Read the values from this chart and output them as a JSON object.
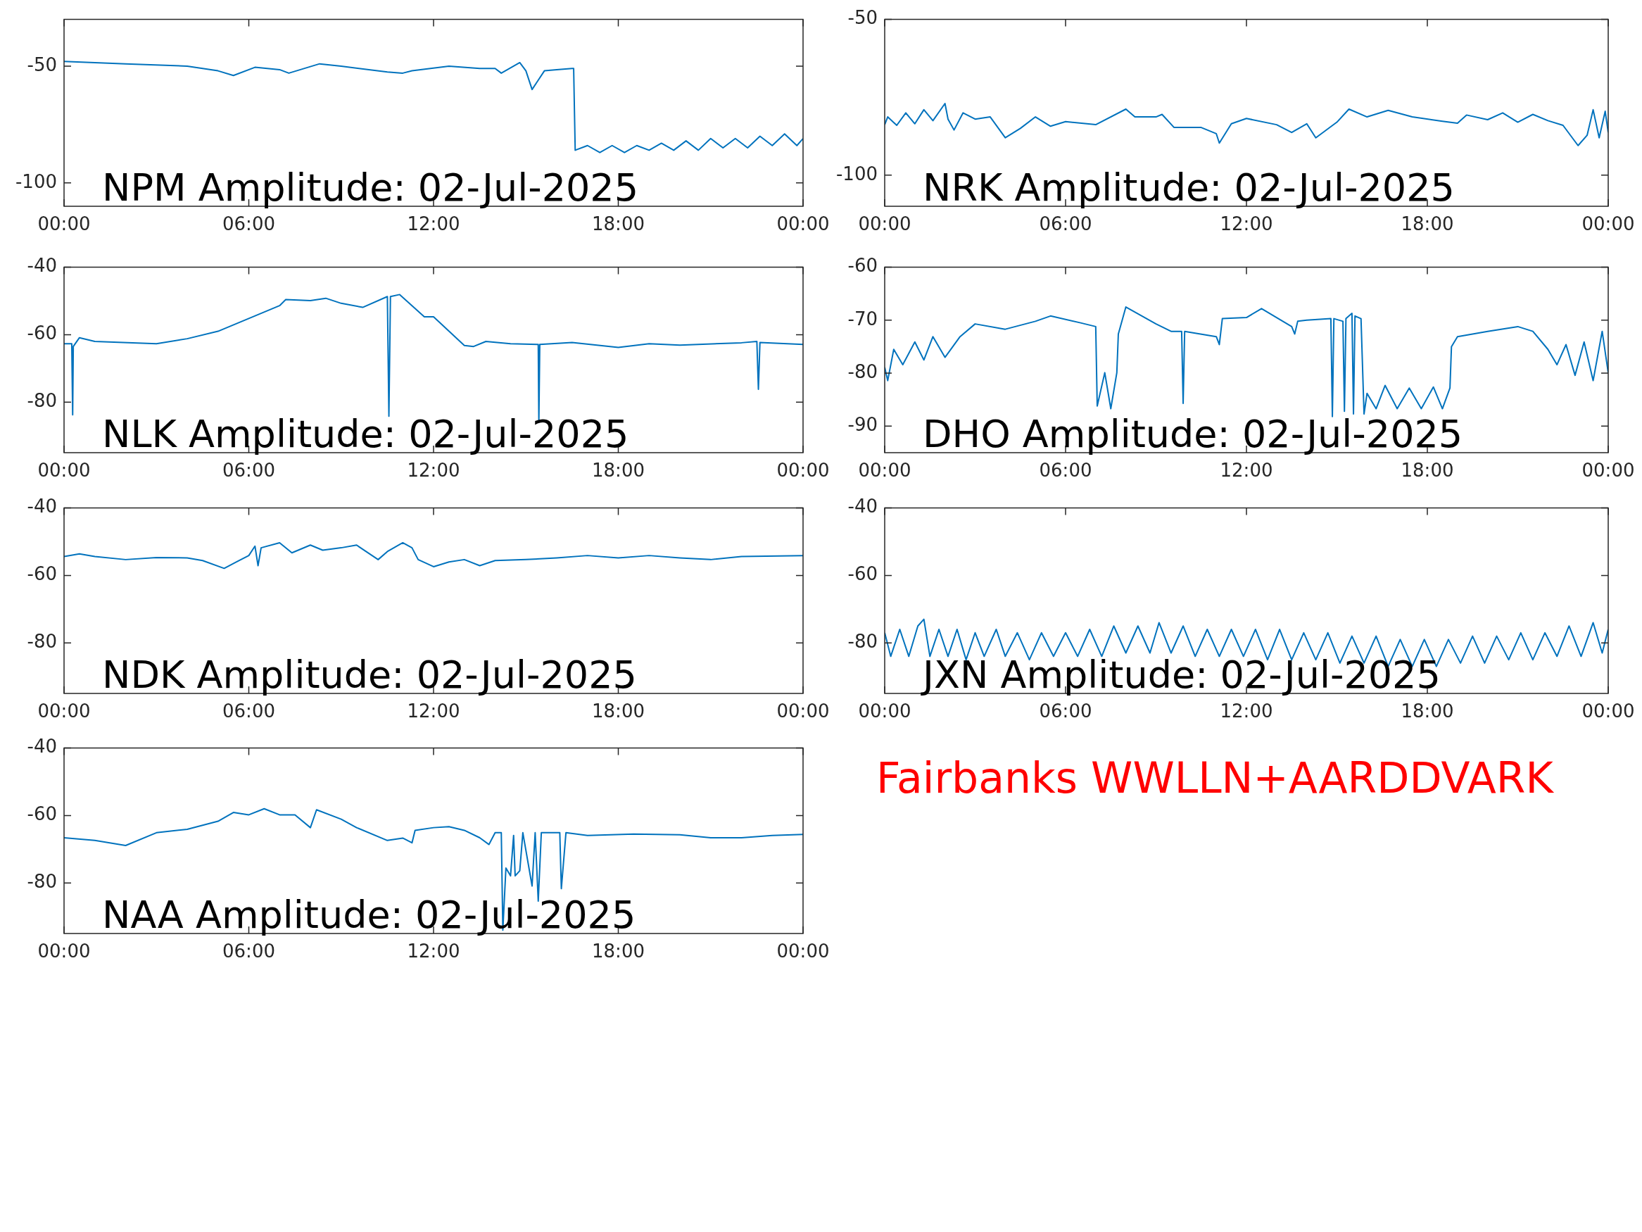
{
  "chart_data": [
    {
      "type": "line",
      "title": "NPM Amplitude: 02-Jul-2025",
      "x": [
        0,
        2,
        4,
        5,
        5.5,
        6.2,
        7,
        7.3,
        8.3,
        9,
        10.5,
        11,
        11.3,
        12.5,
        13.5,
        14,
        14.2,
        14.8,
        15,
        15.2,
        15.6,
        16,
        16.5,
        16.55,
        16.6,
        17,
        17.4,
        17.8,
        18.2,
        18.6,
        19,
        19.4,
        19.8,
        20.2,
        20.6,
        21,
        21.4,
        21.8,
        22.2,
        22.6,
        23,
        23.4,
        23.8,
        24
      ],
      "series": [
        {
          "color": "#0072bd",
          "values": [
            -48,
            -49,
            -50,
            -52,
            -54,
            -50.5,
            -51.5,
            -53,
            -49,
            -50,
            -52.5,
            -53,
            -52,
            -50,
            -51,
            -51,
            -53,
            -48.5,
            -52,
            -60,
            -52,
            -51.5,
            -51,
            -51,
            -86,
            -84,
            -87,
            -84,
            -87,
            -84,
            -86,
            -83,
            -86,
            -82,
            -86,
            -81,
            -85,
            -81,
            -85,
            -80,
            -84,
            -79,
            -84,
            -81
          ]
        }
      ],
      "xlim": [
        0,
        24
      ],
      "xticks": [
        {
          "value": 0,
          "label": "00:00"
        },
        {
          "value": 6,
          "label": "06:00"
        },
        {
          "value": 12,
          "label": "12:00"
        },
        {
          "value": 18,
          "label": "18:00"
        },
        {
          "value": 24,
          "label": "00:00"
        }
      ],
      "ylim": [
        -110,
        -30
      ],
      "yticks": [
        -100,
        -50
      ]
    },
    {
      "type": "line",
      "title": "NRK Amplitude: 02-Jul-2025",
      "x": [
        0,
        0.1,
        0.4,
        0.7,
        1,
        1.3,
        1.6,
        2,
        2.1,
        2.3,
        2.6,
        3,
        3.5,
        4,
        4.5,
        5,
        5.5,
        6,
        7,
        8,
        8.3,
        9,
        9.2,
        9.6,
        10.5,
        11,
        11.1,
        11.5,
        12,
        13,
        13.5,
        14,
        14.3,
        15,
        15.4,
        16,
        16.7,
        17.5,
        18.5,
        19,
        19.3,
        20,
        20.5,
        21,
        21.5,
        22,
        22.5,
        23,
        23.3,
        23.5,
        23.7,
        23.9,
        24
      ],
      "series": [
        {
          "color": "#0072bd",
          "values": [
            -83.8,
            -81.3,
            -84,
            -80,
            -83.5,
            -79,
            -82.5,
            -77,
            -82,
            -85.5,
            -80,
            -82,
            -81.3,
            -88,
            -85,
            -81.3,
            -84.3,
            -82.8,
            -83.8,
            -78.8,
            -81.3,
            -81.3,
            -80.5,
            -84.7,
            -84.7,
            -86.7,
            -89.7,
            -83.5,
            -81.8,
            -83.8,
            -86.3,
            -83.5,
            -88,
            -83,
            -78.8,
            -81.3,
            -79.2,
            -81.3,
            -82.7,
            -83.3,
            -80.7,
            -82.2,
            -80,
            -83,
            -80.5,
            -82.5,
            -84,
            -90.5,
            -87.2,
            -79,
            -88,
            -79.5,
            -86.3
          ]
        }
      ],
      "xlim": [
        0,
        24
      ],
      "xticks": [
        {
          "value": 0,
          "label": "00:00"
        },
        {
          "value": 6,
          "label": "06:00"
        },
        {
          "value": 12,
          "label": "12:00"
        },
        {
          "value": 18,
          "label": "18:00"
        },
        {
          "value": 24,
          "label": "00:00"
        }
      ],
      "ylim": [
        -110,
        -50
      ],
      "yticks": [
        -100,
        -50
      ]
    },
    {
      "type": "line",
      "title": "NLK Amplitude: 02-Jul-2025",
      "x": [
        0,
        0.25,
        0.28,
        0.3,
        0.5,
        1,
        3,
        4,
        5,
        6,
        7,
        7.2,
        8,
        8.5,
        9,
        9.7,
        10.5,
        10.55,
        10.6,
        10.9,
        11.7,
        12,
        13,
        13.3,
        13.7,
        14.5,
        15.4,
        15.42,
        15.45,
        16.5,
        18,
        19,
        20,
        22,
        22.5,
        22.55,
        22.6,
        24
      ],
      "series": [
        {
          "color": "#0072bd",
          "values": [
            -62.7,
            -62.7,
            -83.8,
            -63.5,
            -60.9,
            -62,
            -62.7,
            -61.2,
            -59,
            -55.2,
            -51.4,
            -49.6,
            -49.9,
            -49.2,
            -50.7,
            -51.9,
            -48.7,
            -84.2,
            -48.7,
            -48.1,
            -54.7,
            -54.7,
            -63.2,
            -63.5,
            -62,
            -62.7,
            -62.9,
            -86,
            -62.9,
            -62.3,
            -63.8,
            -62.7,
            -63.1,
            -62.4,
            -62,
            -76.2,
            -62.3,
            -62.9
          ]
        }
      ],
      "xlim": [
        0,
        24
      ],
      "xticks": [
        {
          "value": 0,
          "label": "00:00"
        },
        {
          "value": 6,
          "label": "06:00"
        },
        {
          "value": 12,
          "label": "12:00"
        },
        {
          "value": 18,
          "label": "18:00"
        },
        {
          "value": 24,
          "label": "00:00"
        }
      ],
      "ylim": [
        -95,
        -40
      ],
      "yticks": [
        -80,
        -60,
        -40
      ]
    },
    {
      "type": "line",
      "title": "DHO Amplitude: 02-Jul-2025",
      "x": [
        0,
        0.1,
        0.3,
        0.6,
        1,
        1.3,
        1.6,
        2,
        2.5,
        3,
        4,
        5,
        5.5,
        6.5,
        7,
        7.05,
        7.3,
        7.5,
        7.7,
        7.75,
        8,
        9,
        9.5,
        9.85,
        9.9,
        9.95,
        11,
        11.1,
        11.2,
        12,
        12.5,
        13.5,
        13.6,
        13.7,
        14,
        14.8,
        14.85,
        14.9,
        15.2,
        15.25,
        15.3,
        15.5,
        15.55,
        15.6,
        15.8,
        15.9,
        16,
        16.3,
        16.6,
        17,
        17.4,
        17.8,
        18.2,
        18.5,
        18.75,
        18.8,
        19,
        20,
        21,
        21.5,
        22,
        22.3,
        22.6,
        22.9,
        23.2,
        23.5,
        23.8,
        24
      ],
      "series": [
        {
          "color": "#0072bd",
          "values": [
            -78.9,
            -81.4,
            -75.5,
            -78.4,
            -74.1,
            -77.5,
            -73.1,
            -77,
            -73.1,
            -70.7,
            -71.7,
            -70.2,
            -69.2,
            -70.5,
            -71.2,
            -86.2,
            -79.9,
            -86.7,
            -79.9,
            -72.6,
            -67.5,
            -70.7,
            -72.1,
            -72.1,
            -85.7,
            -72.1,
            -73.1,
            -74.6,
            -69.7,
            -69.5,
            -67.8,
            -71.2,
            -72.6,
            -70.2,
            -70,
            -69.7,
            -88.2,
            -69.7,
            -70.2,
            -87.2,
            -69.7,
            -68.7,
            -87.7,
            -69.2,
            -69.7,
            -87.7,
            -83.8,
            -86.7,
            -82.3,
            -86.7,
            -82.8,
            -86.7,
            -82.6,
            -86.7,
            -82.8,
            -75,
            -73.1,
            -72.1,
            -71.2,
            -72.1,
            -75.5,
            -78.4,
            -74.6,
            -80.4,
            -74.1,
            -81.4,
            -72.1,
            -79.9
          ]
        }
      ],
      "xlim": [
        0,
        24
      ],
      "xticks": [
        {
          "value": 0,
          "label": "00:00"
        },
        {
          "value": 6,
          "label": "06:00"
        },
        {
          "value": 12,
          "label": "12:00"
        },
        {
          "value": 18,
          "label": "18:00"
        },
        {
          "value": 24,
          "label": "00:00"
        }
      ],
      "ylim": [
        -95,
        -60
      ],
      "yticks": [
        -90,
        -80,
        -70,
        -60
      ]
    },
    {
      "type": "line",
      "title": "NDK Amplitude: 02-Jul-2025",
      "x": [
        0,
        0.5,
        1,
        2,
        3,
        4,
        4.5,
        5.2,
        5.6,
        6,
        6.2,
        6.3,
        6.4,
        7,
        7.4,
        8,
        8.4,
        9,
        9.5,
        10.2,
        10.5,
        11,
        11.3,
        11.5,
        12,
        12.5,
        13,
        13.5,
        14,
        15,
        16,
        17,
        18,
        19,
        20,
        21,
        22,
        24
      ],
      "series": [
        {
          "color": "#0072bd",
          "values": [
            -54.4,
            -53.6,
            -54.4,
            -55.3,
            -54.7,
            -54.8,
            -55.6,
            -57.9,
            -56,
            -54.1,
            -51.3,
            -57.1,
            -51.8,
            -50.3,
            -53.3,
            -51,
            -52.5,
            -51.8,
            -51,
            -55.3,
            -52.9,
            -50.3,
            -51.8,
            -55.3,
            -57.4,
            -56,
            -55.3,
            -57.1,
            -55.6,
            -55.3,
            -54.8,
            -54.1,
            -54.8,
            -54.1,
            -54.8,
            -55.3,
            -54.4,
            -54.1
          ]
        }
      ],
      "xlim": [
        0,
        24
      ],
      "xticks": [
        {
          "value": 0,
          "label": "00:00"
        },
        {
          "value": 6,
          "label": "06:00"
        },
        {
          "value": 12,
          "label": "12:00"
        },
        {
          "value": 18,
          "label": "18:00"
        },
        {
          "value": 24,
          "label": "00:00"
        }
      ],
      "ylim": [
        -95,
        -40
      ],
      "yticks": [
        -80,
        -60,
        -40
      ]
    },
    {
      "type": "line",
      "title": "JXN Amplitude: 02-Jul-2025",
      "x": [
        0,
        0.2,
        0.5,
        0.8,
        1.1,
        1.3,
        1.5,
        1.8,
        2.1,
        2.4,
        2.7,
        3,
        3.3,
        3.7,
        4,
        4.4,
        4.8,
        5.2,
        5.6,
        6,
        6.4,
        6.8,
        7.2,
        7.6,
        8,
        8.4,
        8.8,
        9.1,
        9.5,
        9.9,
        10.3,
        10.7,
        11.1,
        11.5,
        11.9,
        12.3,
        12.7,
        13.1,
        13.5,
        13.9,
        14.3,
        14.7,
        15.1,
        15.5,
        15.9,
        16.3,
        16.7,
        17.1,
        17.5,
        17.9,
        18.3,
        18.7,
        19.1,
        19.5,
        19.9,
        20.3,
        20.7,
        21.1,
        21.5,
        21.9,
        22.3,
        22.7,
        23.1,
        23.5,
        23.8,
        24
      ],
      "series": [
        {
          "color": "#0072bd",
          "values": [
            -77,
            -84,
            -76,
            -84,
            -75,
            -73,
            -84,
            -76,
            -84,
            -76,
            -85,
            -77,
            -84,
            -76,
            -84,
            -77,
            -85,
            -77,
            -84,
            -77,
            -84,
            -76,
            -84,
            -75,
            -83,
            -75,
            -83,
            -74,
            -83,
            -75,
            -84,
            -76,
            -84,
            -76,
            -84,
            -76,
            -85,
            -76,
            -85,
            -77,
            -85,
            -77,
            -86,
            -78,
            -86,
            -78,
            -87,
            -79,
            -87,
            -79,
            -87,
            -79,
            -86,
            -78,
            -86,
            -78,
            -85,
            -77,
            -85,
            -77,
            -84,
            -75,
            -84,
            -74,
            -83,
            -76
          ]
        }
      ],
      "xlim": [
        0,
        24
      ],
      "xticks": [
        {
          "value": 0,
          "label": "00:00"
        },
        {
          "value": 6,
          "label": "06:00"
        },
        {
          "value": 12,
          "label": "12:00"
        },
        {
          "value": 18,
          "label": "18:00"
        },
        {
          "value": 24,
          "label": "00:00"
        }
      ],
      "ylim": [
        -95,
        -40
      ],
      "yticks": [
        -80,
        -60,
        -40
      ]
    },
    {
      "type": "line",
      "title": "NAA Amplitude: 02-Jul-2025",
      "x": [
        0,
        1,
        2,
        3,
        4,
        5,
        5.5,
        6,
        6.5,
        7,
        7.5,
        8,
        8.2,
        9,
        9.5,
        10.5,
        11,
        11.3,
        11.4,
        12,
        12.5,
        13,
        13.5,
        13.8,
        14,
        14.2,
        14.25,
        14.35,
        14.5,
        14.6,
        14.65,
        14.8,
        14.9,
        15.2,
        15.3,
        15.4,
        15.5,
        16.1,
        16.15,
        16.3,
        17,
        18.5,
        20,
        21,
        22,
        23,
        24
      ],
      "series": [
        {
          "color": "#0072bd",
          "values": [
            -66.6,
            -67.4,
            -68.9,
            -65.1,
            -64.1,
            -61.7,
            -59.1,
            -59.8,
            -58,
            -59.8,
            -59.8,
            -63.6,
            -58.3,
            -61.1,
            -63.6,
            -67.4,
            -66.7,
            -68.1,
            -64.4,
            -63.6,
            -63.3,
            -64.4,
            -66.6,
            -68.6,
            -65.1,
            -65.1,
            -94,
            -75.6,
            -77.9,
            -65.9,
            -77.9,
            -76.4,
            -65.1,
            -80.9,
            -65.1,
            -85.4,
            -65.1,
            -65.1,
            -81.7,
            -65.1,
            -65.9,
            -65.5,
            -65.7,
            -66.6,
            -66.6,
            -65.9,
            -65.6
          ]
        }
      ],
      "xlim": [
        0,
        24
      ],
      "xticks": [
        {
          "value": 0,
          "label": "00:00"
        },
        {
          "value": 6,
          "label": "06:00"
        },
        {
          "value": 12,
          "label": "12:00"
        },
        {
          "value": 18,
          "label": "18:00"
        },
        {
          "value": 24,
          "label": "00:00"
        }
      ],
      "ylim": [
        -95,
        -40
      ],
      "yticks": [
        -80,
        -60,
        -40
      ]
    },
    {
      "type": "other",
      "title": "Fairbanks WWLLN+AARDDVARK",
      "color": "#ff0000"
    }
  ]
}
